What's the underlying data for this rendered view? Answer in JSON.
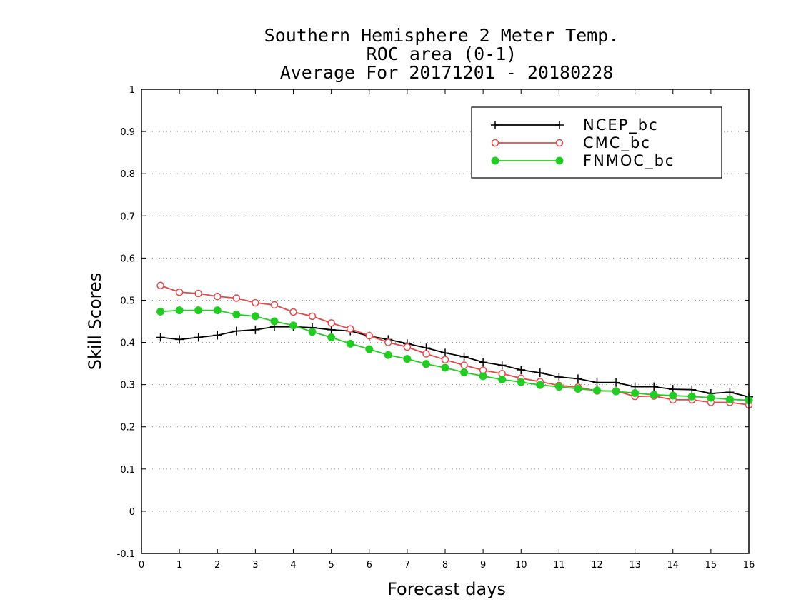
{
  "chart_data": {
    "type": "line",
    "title_lines": [
      "Southern Hemisphere 2 Meter Temp.",
      "ROC area (0-1)",
      "Average For 20171201 - 20180228"
    ],
    "xlabel": "Forecast days",
    "ylabel": "Skill Scores",
    "xlim": [
      0,
      16
    ],
    "ylim": [
      -0.1,
      1
    ],
    "xticks": [
      0,
      1,
      2,
      3,
      4,
      5,
      6,
      7,
      8,
      9,
      10,
      11,
      12,
      13,
      14,
      15,
      16
    ],
    "xtick_labels": [
      "0",
      "1",
      "2",
      "3",
      "4",
      "5",
      "6",
      "7",
      "8",
      "9",
      "10",
      "11",
      "12",
      "13",
      "14",
      "15",
      "16"
    ],
    "yticks": [
      -0.1,
      0,
      0.1,
      0.2,
      0.3,
      0.4,
      0.5,
      0.6,
      0.7,
      0.8,
      0.9,
      1
    ],
    "ytick_labels": [
      "-0.1",
      "0",
      "0.1",
      "0.2",
      "0.3",
      "0.4",
      "0.5",
      "0.6",
      "0.7",
      "0.8",
      "0.9",
      "1"
    ],
    "grid": "dotted horizontal",
    "legend_position": "top-right",
    "x": [
      0.5,
      1,
      1.5,
      2,
      2.5,
      3,
      3.5,
      4,
      4.5,
      5,
      5.5,
      6,
      6.5,
      7,
      7.5,
      8,
      8.5,
      9,
      9.5,
      10,
      10.5,
      11,
      11.5,
      12,
      12.5,
      13,
      13.5,
      14,
      14.5,
      15,
      15.5,
      16
    ],
    "series": [
      {
        "name": "NCEP_bc",
        "color": "#000000",
        "marker": "plus",
        "values": [
          0.412,
          0.407,
          0.412,
          0.417,
          0.427,
          0.43,
          0.437,
          0.437,
          0.435,
          0.43,
          0.427,
          0.415,
          0.407,
          0.397,
          0.387,
          0.375,
          0.366,
          0.353,
          0.346,
          0.335,
          0.328,
          0.318,
          0.314,
          0.305,
          0.305,
          0.295,
          0.295,
          0.289,
          0.288,
          0.279,
          0.282,
          0.271
        ]
      },
      {
        "name": "CMC_bc",
        "color": "#e8474a",
        "marker": "open-circle",
        "values": [
          0.535,
          0.519,
          0.516,
          0.509,
          0.505,
          0.494,
          0.489,
          0.472,
          0.462,
          0.446,
          0.432,
          0.416,
          0.4,
          0.389,
          0.373,
          0.359,
          0.346,
          0.334,
          0.326,
          0.315,
          0.307,
          0.298,
          0.294,
          0.285,
          0.285,
          0.272,
          0.273,
          0.264,
          0.264,
          0.258,
          0.258,
          0.252
        ]
      },
      {
        "name": "FNMOC_bc",
        "color": "#22cc22",
        "marker": "filled-circle",
        "values": [
          0.473,
          0.476,
          0.476,
          0.476,
          0.466,
          0.462,
          0.45,
          0.44,
          0.425,
          0.412,
          0.397,
          0.384,
          0.37,
          0.361,
          0.349,
          0.34,
          0.329,
          0.32,
          0.312,
          0.306,
          0.299,
          0.295,
          0.29,
          0.286,
          0.284,
          0.28,
          0.276,
          0.274,
          0.272,
          0.269,
          0.265,
          0.263
        ]
      }
    ]
  }
}
